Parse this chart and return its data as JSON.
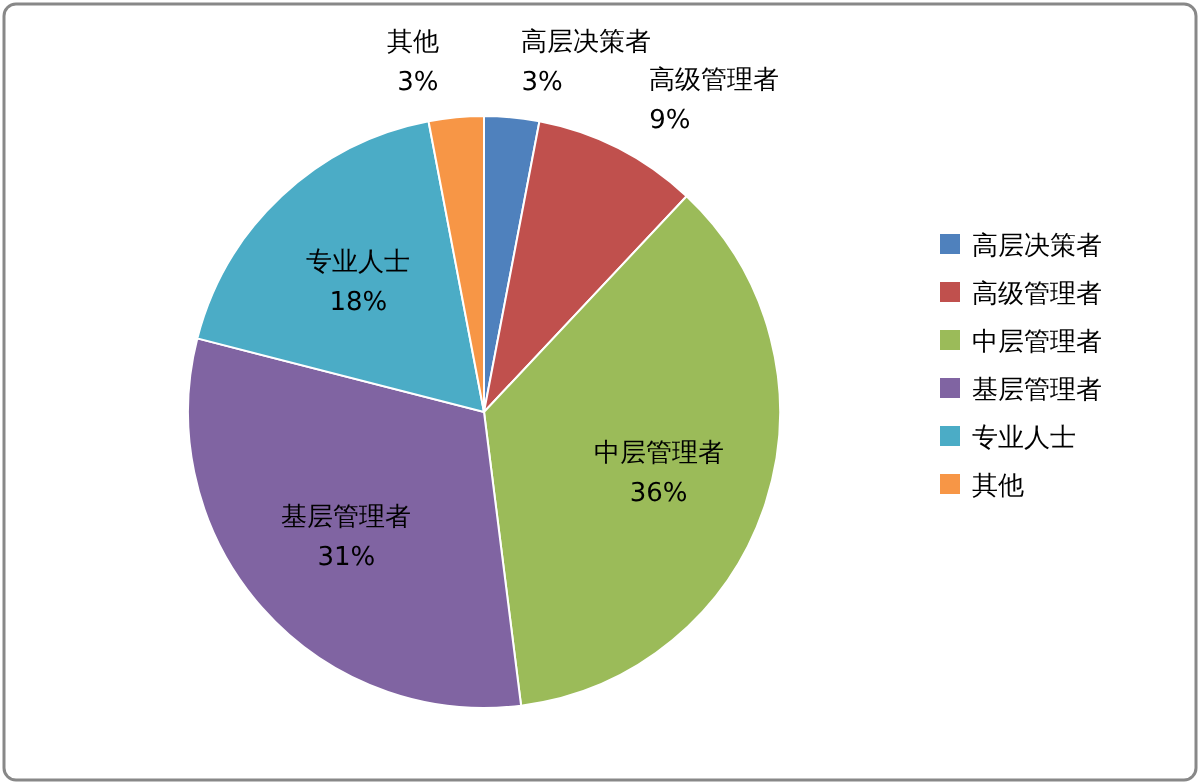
{
  "chart_data": {
    "type": "pie",
    "categories": [
      "高层决策者",
      "高级管理者",
      "中层管理者",
      "基层管理者",
      "专业人士",
      "其他"
    ],
    "values": [
      3,
      9,
      36,
      31,
      18,
      3
    ],
    "colors": [
      "#4f81bd",
      "#c0504d",
      "#9bbb59",
      "#8064a2",
      "#4bacc6",
      "#f79646"
    ],
    "value_labels": [
      "3%",
      "9%",
      "36%",
      "31%",
      "18%",
      "3%"
    ],
    "legend": "right"
  }
}
